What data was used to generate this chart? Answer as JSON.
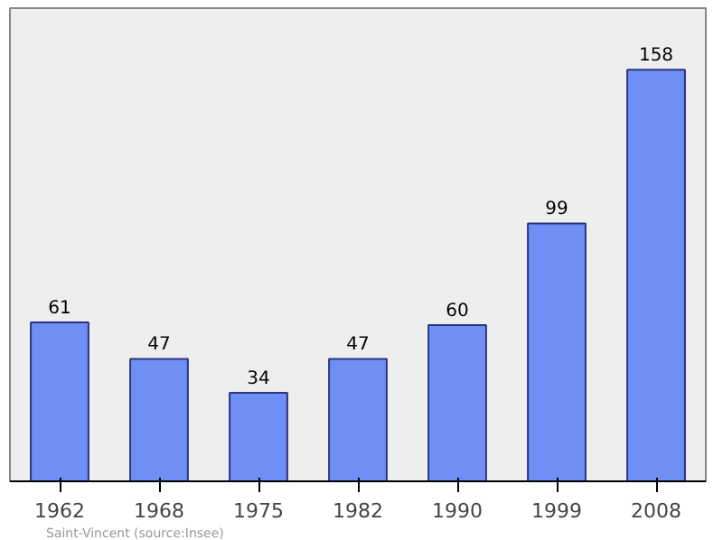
{
  "chart_data": {
    "type": "bar",
    "categories": [
      "1962",
      "1968",
      "1975",
      "1982",
      "1990",
      "1999",
      "2008"
    ],
    "values": [
      61,
      47,
      34,
      47,
      60,
      99,
      158
    ],
    "color": "#6f8ff5",
    "data_labels": true,
    "grid": false,
    "annotations": [
      "Saint-Vincent    (source:Insee)"
    ]
  }
}
